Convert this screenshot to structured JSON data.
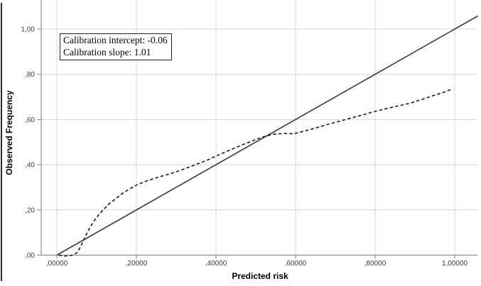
{
  "chart_data": {
    "type": "line",
    "title": "",
    "xlabel": "Predicted risk",
    "ylabel": "Observed Frequency",
    "xlim": [
      -0.04,
      1.07
    ],
    "ylim": [
      0,
      1.13
    ],
    "grid": true,
    "legend": "none",
    "x_ticks": {
      "values": [
        0,
        0.2,
        0.4,
        0.6,
        0.8,
        1.0
      ],
      "labels": [
        ",00000",
        ",20000",
        ",40000",
        ",60000",
        ",80000",
        "1,00000"
      ]
    },
    "y_ticks": {
      "values": [
        0,
        0.2,
        0.4,
        0.6,
        0.8,
        1.0
      ],
      "labels": [
        ",00",
        ",20",
        ",40",
        ",60",
        ",80",
        "1,00"
      ]
    },
    "annotation": {
      "line1": "Calibration intercept: -0.06",
      "line2": "Calibration slope: 1.01",
      "calibration_intercept": -0.06,
      "calibration_slope": 1.01
    },
    "series": [
      {
        "name": "ideal-line",
        "style": "solid",
        "color": "#3a3a3a",
        "points": [
          [
            0.0,
            0.0
          ],
          [
            1.058,
            1.058
          ]
        ]
      },
      {
        "name": "calibration-curve",
        "style": "dashed",
        "color": "#1a1a1a",
        "points": [
          [
            0.005,
            0.0
          ],
          [
            0.02,
            -0.004
          ],
          [
            0.04,
            0.0
          ],
          [
            0.052,
            0.012
          ],
          [
            0.062,
            0.045
          ],
          [
            0.072,
            0.085
          ],
          [
            0.082,
            0.118
          ],
          [
            0.092,
            0.148
          ],
          [
            0.105,
            0.178
          ],
          [
            0.118,
            0.203
          ],
          [
            0.132,
            0.228
          ],
          [
            0.148,
            0.25
          ],
          [
            0.165,
            0.273
          ],
          [
            0.182,
            0.292
          ],
          [
            0.2,
            0.31
          ],
          [
            0.225,
            0.328
          ],
          [
            0.255,
            0.345
          ],
          [
            0.285,
            0.36
          ],
          [
            0.315,
            0.378
          ],
          [
            0.345,
            0.398
          ],
          [
            0.375,
            0.418
          ],
          [
            0.405,
            0.442
          ],
          [
            0.435,
            0.465
          ],
          [
            0.465,
            0.487
          ],
          [
            0.495,
            0.508
          ],
          [
            0.52,
            0.524
          ],
          [
            0.545,
            0.535
          ],
          [
            0.57,
            0.538
          ],
          [
            0.595,
            0.537
          ],
          [
            0.62,
            0.548
          ],
          [
            0.65,
            0.562
          ],
          [
            0.68,
            0.578
          ],
          [
            0.71,
            0.592
          ],
          [
            0.74,
            0.607
          ],
          [
            0.77,
            0.621
          ],
          [
            0.8,
            0.636
          ],
          [
            0.83,
            0.649
          ],
          [
            0.86,
            0.661
          ],
          [
            0.89,
            0.673
          ],
          [
            0.92,
            0.69
          ],
          [
            0.95,
            0.708
          ],
          [
            0.975,
            0.722
          ],
          [
            0.995,
            0.736
          ]
        ]
      }
    ],
    "colors": {
      "gridline": "#d4d4d4",
      "axis": "#8f8f8f",
      "tick_label": "#3d3d3d",
      "axis_title": "#000000",
      "background": "#ffffff"
    }
  }
}
